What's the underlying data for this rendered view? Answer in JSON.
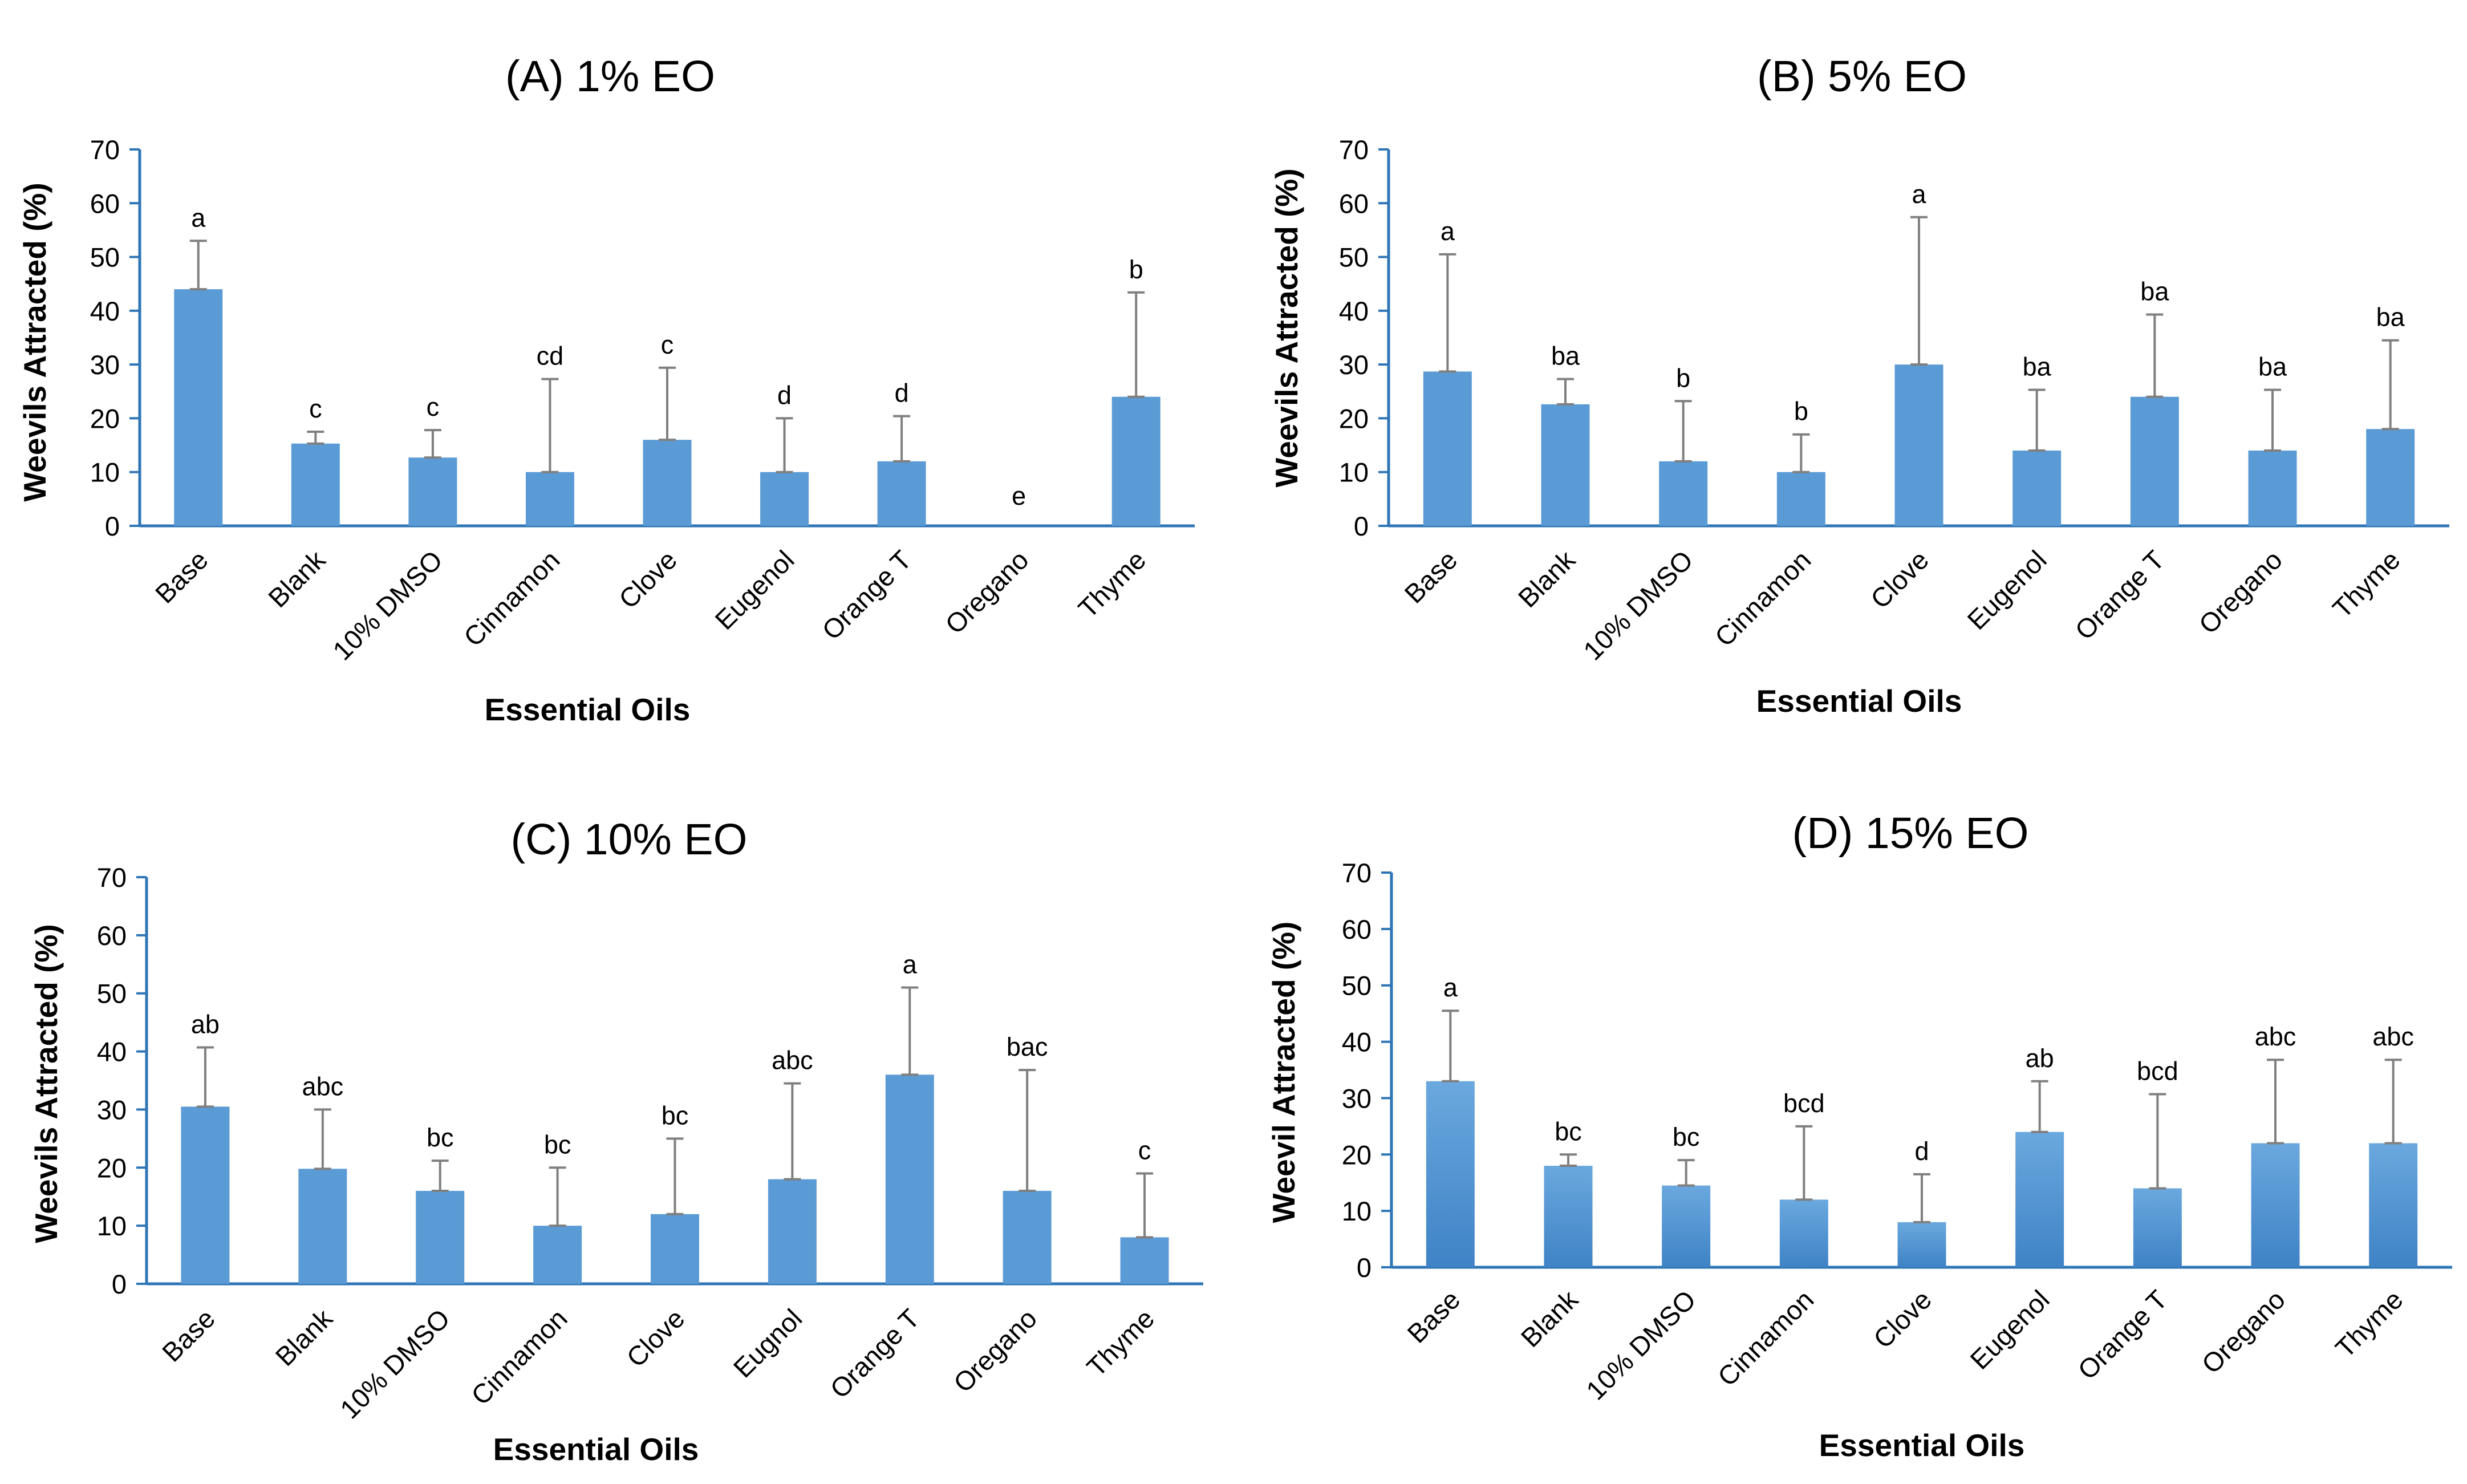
{
  "colors": {
    "bar": "#5b9bd5",
    "bar_dark": "#3f83c6",
    "axis": "#2e75b6",
    "error_bar": "#7f7f7f"
  },
  "chart_data": [
    {
      "type": "bar",
      "title": "(A) 1% EO",
      "xlabel": "Essential Oils",
      "ylabel": "Weevils Attracted (%)",
      "ylim": [
        0,
        70
      ],
      "yticks": [
        "0",
        "10",
        "20",
        "30",
        "40",
        "50",
        "60",
        "70"
      ],
      "categories": [
        "Base",
        "Blank",
        "10% DMSO",
        "Cinnamon",
        "Clove",
        "Eugenol",
        "Orange T",
        "Oregano",
        "Thyme"
      ],
      "values": [
        44,
        15.3,
        12.7,
        10,
        16,
        10,
        12,
        0,
        24
      ],
      "error_upper": [
        53,
        17.5,
        17.8,
        27.3,
        29.4,
        20,
        20.4,
        0,
        43.4
      ],
      "letters": [
        "a",
        "c",
        "c",
        "cd",
        "c",
        "d",
        "d",
        "e",
        "b"
      ]
    },
    {
      "type": "bar",
      "title": "(B) 5% EO",
      "xlabel": "Essential Oils",
      "ylabel": "Weevils Attracted (%)",
      "ylim": [
        0,
        70
      ],
      "yticks": [
        "0",
        "10",
        "20",
        "30",
        "40",
        "50",
        "60",
        "70"
      ],
      "categories": [
        "Base",
        "Blank",
        "10% DMSO",
        "Cinnamon",
        "Clove",
        "Eugenol",
        "Orange T",
        "Oregano",
        "Thyme"
      ],
      "values": [
        28.7,
        22.6,
        12,
        10,
        30,
        14,
        24,
        14,
        18
      ],
      "error_upper": [
        50.5,
        27.3,
        23.2,
        17,
        57.4,
        25.3,
        39.3,
        25.3,
        34.5
      ],
      "letters": [
        "a",
        "ba",
        "b",
        "b",
        "a",
        "ba",
        "ba",
        "ba",
        "ba"
      ]
    },
    {
      "type": "bar",
      "title": "(C) 10% EO",
      "xlabel": "Essential Oils",
      "ylabel": "Weevils Attracted (%)",
      "ylim": [
        0,
        70
      ],
      "yticks": [
        "0",
        "10",
        "20",
        "30",
        "40",
        "50",
        "60",
        "70"
      ],
      "categories": [
        "Base",
        "Blank",
        "10% DMSO",
        "Cinnamon",
        "Clove",
        "Eugnol",
        "Orange T",
        "Oregano",
        "Thyme"
      ],
      "values": [
        30.5,
        19.8,
        16,
        10,
        12,
        18,
        36,
        16,
        8
      ],
      "error_upper": [
        40.7,
        30,
        21.2,
        20,
        25,
        34.5,
        51,
        36.8,
        19
      ],
      "letters": [
        "ab",
        "abc",
        "bc",
        "bc",
        "bc",
        "abc",
        "a",
        "bac",
        "c"
      ]
    },
    {
      "type": "bar",
      "title": "(D) 15% EO",
      "xlabel": "Essential Oils",
      "ylabel": "Weevil Attracted (%)",
      "ylim": [
        0,
        70
      ],
      "yticks": [
        "0",
        "10",
        "20",
        "30",
        "40",
        "50",
        "60",
        "70"
      ],
      "categories": [
        "Base",
        "Blank",
        "10% DMSO",
        "Cinnamon",
        "Clove",
        "Eugenol",
        "Orange T",
        "Oregano",
        "Thyme"
      ],
      "values": [
        33,
        18,
        14.5,
        12,
        8,
        24,
        14,
        22,
        22
      ],
      "error_upper": [
        45.5,
        20,
        19,
        25,
        16.5,
        33,
        30.7,
        36.8,
        36.8
      ],
      "letters": [
        "a",
        "bc",
        "bc",
        "bcd",
        "d",
        "ab",
        "bcd",
        "abc",
        "abc"
      ]
    }
  ]
}
